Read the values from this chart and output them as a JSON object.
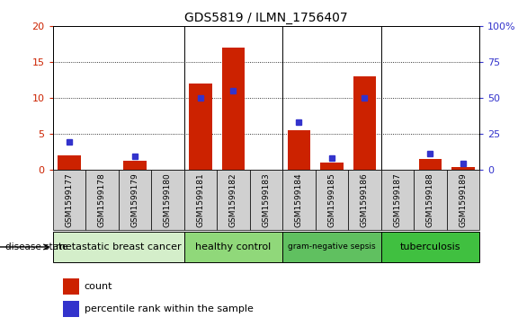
{
  "title": "GDS5819 / ILMN_1756407",
  "samples": [
    "GSM1599177",
    "GSM1599178",
    "GSM1599179",
    "GSM1599180",
    "GSM1599181",
    "GSM1599182",
    "GSM1599183",
    "GSM1599184",
    "GSM1599185",
    "GSM1599186",
    "GSM1599187",
    "GSM1599188",
    "GSM1599189"
  ],
  "red_values": [
    2.0,
    0.0,
    1.2,
    0.0,
    12.0,
    17.0,
    0.0,
    5.5,
    1.0,
    13.0,
    0.0,
    1.5,
    0.4
  ],
  "blue_pct": [
    19.0,
    0.0,
    9.0,
    0.0,
    50.0,
    55.0,
    0.0,
    33.0,
    8.0,
    50.0,
    0.0,
    11.0,
    4.5
  ],
  "groups": [
    {
      "label": "metastatic breast cancer",
      "start": 0,
      "end": 4,
      "color": "#d4eeca"
    },
    {
      "label": "healthy control",
      "start": 4,
      "end": 7,
      "color": "#90d87a"
    },
    {
      "label": "gram-negative sepsis",
      "start": 7,
      "end": 10,
      "color": "#60c060"
    },
    {
      "label": "tuberculosis",
      "start": 10,
      "end": 13,
      "color": "#40c040"
    }
  ],
  "ylim_left": [
    0,
    20
  ],
  "ylim_right": [
    0,
    100
  ],
  "yticks_left": [
    0,
    5,
    10,
    15,
    20
  ],
  "yticks_right": [
    0,
    25,
    50,
    75,
    100
  ],
  "ytick_labels_left": [
    "0",
    "5",
    "10",
    "15",
    "20"
  ],
  "ytick_labels_right": [
    "0",
    "25",
    "50",
    "75",
    "100%"
  ],
  "bar_color": "#cc2200",
  "marker_color": "#3333cc",
  "tick_bg_color": "#d0d0d0",
  "disease_label": "disease state",
  "legend_count": "count",
  "legend_pct": "percentile rank within the sample"
}
